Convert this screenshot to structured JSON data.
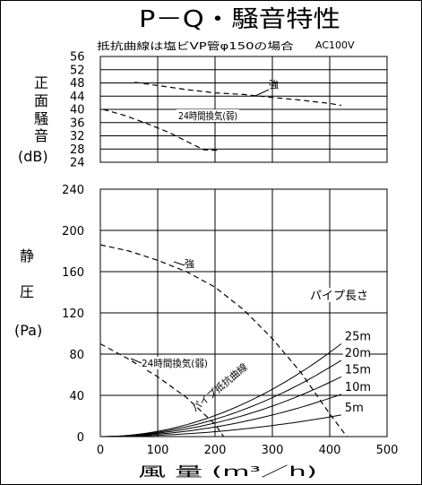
{
  "title": "P－Q・騒音特性",
  "note_left": "抵抗曲線は塩ビVP管φ150の場合",
  "note_right": "AC100V",
  "noise_axis": {
    "label_chars": [
      "正",
      "面",
      "騒",
      "音"
    ],
    "unit": "(dB)"
  },
  "pressure_axis": {
    "label_chars": [
      "静",
      "圧"
    ],
    "unit": "(Pa)"
  },
  "x_axis": {
    "label": "風 量 (m³／h)"
  },
  "chart_data": [
    {
      "type": "line",
      "title": "正面騒音",
      "ylabel": "正面騒音 (dB)",
      "ylim": [
        28,
        56
      ],
      "yticks": [
        28,
        32,
        36,
        40,
        44,
        48,
        52,
        56
      ],
      "y_bottom_label": "24",
      "xlim": [
        0,
        500
      ],
      "grid": true,
      "series": [
        {
          "name": "強",
          "x": [
            60,
            100,
            150,
            200,
            250,
            300,
            350,
            400,
            420
          ],
          "y": [
            48.2,
            47.2,
            46.0,
            45.0,
            44.5,
            43.6,
            42.8,
            41.8,
            41.2
          ]
        },
        {
          "name": "24時間換気(弱)",
          "x": [
            5,
            40,
            80,
            120,
            160,
            180,
            205
          ],
          "y": [
            40.0,
            38.3,
            35.8,
            33.0,
            29.5,
            27.8,
            27.6
          ]
        }
      ]
    },
    {
      "type": "line",
      "title": "静圧",
      "ylabel": "静圧 (Pa)",
      "xlabel": "風量 (m³/h)",
      "xlim": [
        0,
        500
      ],
      "ylim": [
        0,
        240
      ],
      "xticks": [
        0,
        100,
        200,
        300,
        400,
        500
      ],
      "yticks": [
        0,
        40,
        80,
        120,
        160,
        200,
        240
      ],
      "grid": true,
      "series": [
        {
          "name": "強",
          "x": [
            0,
            50,
            100,
            150,
            200,
            250,
            300,
            350,
            400,
            430
          ],
          "y": [
            186,
            180,
            171,
            160,
            145,
            123,
            95,
            62,
            22,
            0
          ]
        },
        {
          "name": "24時間換気(弱)",
          "x": [
            0,
            50,
            100,
            150,
            200,
            215
          ],
          "y": [
            90,
            75,
            58,
            38,
            12,
            0
          ]
        }
      ],
      "resistance_curves": {
        "label": "パイプ抵抗曲線",
        "legend_title": "パイプ長さ",
        "curves": [
          {
            "name": "25m",
            "end_x": 420,
            "end_y": 90
          },
          {
            "name": "20m",
            "end_x": 420,
            "end_y": 74
          },
          {
            "name": "15m",
            "end_x": 420,
            "end_y": 58
          },
          {
            "name": "10m",
            "end_x": 420,
            "end_y": 41
          },
          {
            "name": "5m",
            "end_x": 420,
            "end_y": 21
          }
        ]
      }
    }
  ]
}
